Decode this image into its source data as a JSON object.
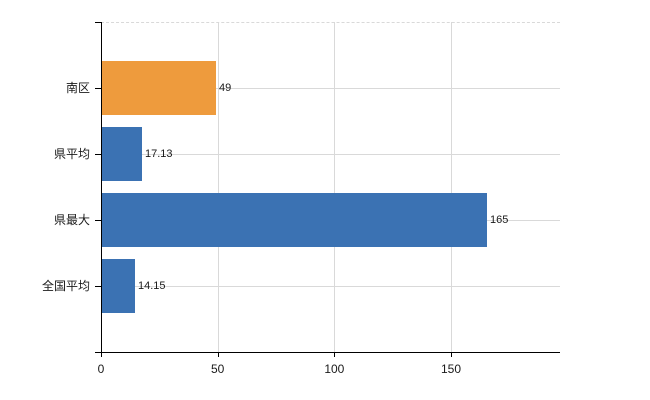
{
  "chart_data": {
    "type": "bar",
    "orientation": "horizontal",
    "title": "",
    "xlabel": "",
    "ylabel": "",
    "categories": [
      "南区",
      "県平均",
      "県最大",
      "全国平均"
    ],
    "values": [
      49,
      17.13,
      165,
      14.15
    ],
    "value_labels": [
      "49",
      "17.13",
      "165",
      "14.15"
    ],
    "bar_colors": [
      "#ee9b3d",
      "#3b72b3",
      "#3b72b3",
      "#3b72b3"
    ],
    "x_ticks": [
      0,
      50,
      100,
      150
    ],
    "x_tick_labels": [
      "0",
      "50",
      "100",
      "150"
    ],
    "xlim": [
      0,
      196.7
    ],
    "grid": true,
    "legend": false,
    "colors": {
      "bar_blue": "#3b72b3",
      "bar_orange": "#ee9b3d",
      "gridline": "#d9d9d9",
      "axis": "#000000",
      "label_text": "#1a1a1a",
      "background": "#ffffff"
    }
  }
}
